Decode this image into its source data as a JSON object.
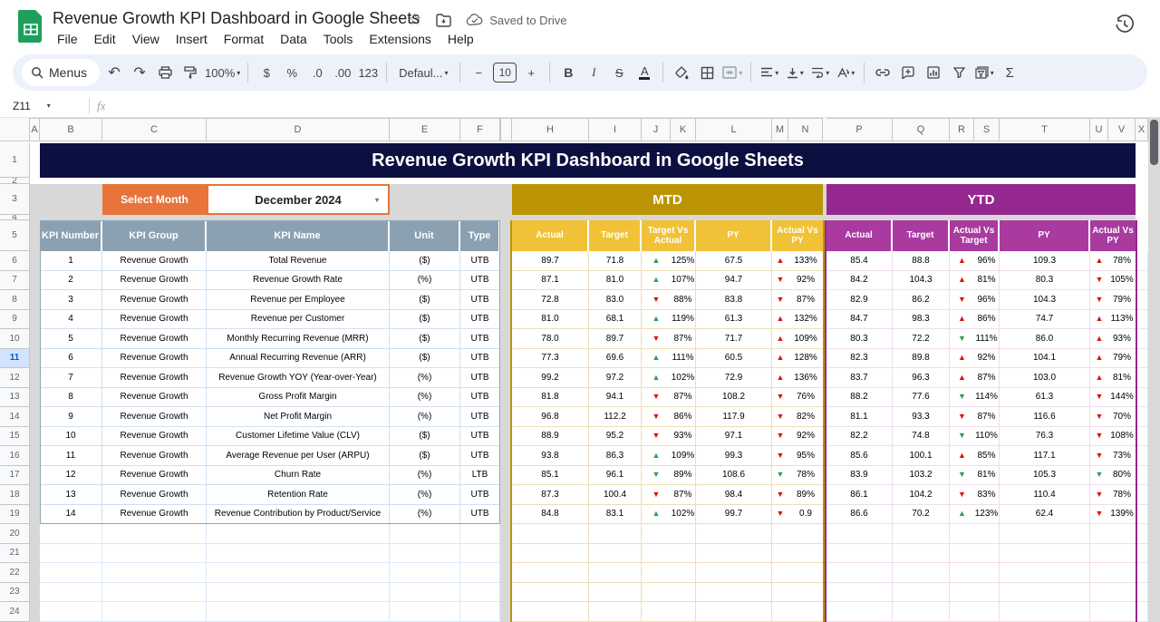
{
  "app": {
    "doc_title": "Revenue Growth KPI Dashboard in Google Sheets",
    "saved_status": "Saved to Drive",
    "menu_items": [
      "File",
      "Edit",
      "View",
      "Insert",
      "Format",
      "Data",
      "Tools",
      "Extensions",
      "Help"
    ]
  },
  "toolbar": {
    "search_label": "Menus",
    "zoom": "100%",
    "currency": "$",
    "percent": "%",
    "decimal_decrease": ".0",
    "decimal_increase": ".00",
    "number_format": "123",
    "font_name": "Defaul...",
    "minus": "−",
    "font_size": "10",
    "plus": "+",
    "bold": "B",
    "italic": "I",
    "strikethrough": "S",
    "text_color": "A",
    "sum": "Σ"
  },
  "formula_bar": {
    "cell_reference": "Z11",
    "fx_label": "fx",
    "formula_value": ""
  },
  "icons": {
    "star": "☆",
    "caret_down": "▾",
    "undo": "↶",
    "redo": "↷",
    "up_arrow": "▲",
    "down_arrow": "▼"
  },
  "colors": {
    "title_navy": "#0c1040",
    "accent_orange": "#e8743b",
    "mtd_gold_dark": "#bb9406",
    "mtd_gold_light": "#f1c237",
    "ytd_purple_dark": "#95288f",
    "ytd_purple_light": "#a83aa0",
    "kpi_header_slate": "#8ba1b1",
    "positive_green": "#2f9e4f",
    "negative_red": "#e01111",
    "dashboard_gray": "#d8d8d8"
  },
  "sheet": {
    "column_letters": [
      "A",
      "B",
      "C",
      "D",
      "E",
      "F",
      "H",
      "I",
      "J",
      "K",
      "L",
      "M",
      "N",
      "P",
      "Q",
      "R",
      "S",
      "T",
      "U",
      "V",
      "X"
    ],
    "row_numbers": [
      1,
      2,
      3,
      4,
      5,
      6,
      7,
      8,
      9,
      10,
      11,
      12,
      13,
      14,
      15,
      16,
      17,
      18,
      19,
      20,
      21,
      22,
      23,
      24
    ],
    "selected_row": 11,
    "title_banner": "Revenue Growth KPI Dashboard in Google Sheets",
    "select_month_label": "Select Month",
    "selected_month": "December 2024",
    "mtd": {
      "title": "MTD",
      "subcolumns": [
        "Actual",
        "Target",
        "Target Vs Actual",
        "PY",
        "Actual Vs PY"
      ]
    },
    "ytd": {
      "title": "YTD",
      "subcolumns": [
        "Actual",
        "Target",
        "Actual Vs Target",
        "PY",
        "Actual Vs PY"
      ]
    },
    "kpi_columns": [
      "KPI Number",
      "KPI Group",
      "KPI Name",
      "Unit",
      "Type"
    ],
    "kpi_rows": [
      {
        "number": "1",
        "group": "Revenue Growth",
        "name": "Total Revenue",
        "unit": "($)",
        "type": "UTB",
        "mtd": {
          "actual": "89.7",
          "target": "71.8",
          "tva": {
            "dir": "up",
            "color": "green",
            "value": "125%"
          },
          "py": "67.5",
          "avp": {
            "dir": "up",
            "color": "red",
            "value": "133%"
          }
        },
        "ytd": {
          "actual": "85.4",
          "target": "88.8",
          "avt": {
            "dir": "up",
            "color": "red",
            "value": "96%"
          },
          "py": "109.3",
          "avp": {
            "dir": "up",
            "color": "red",
            "value": "78%"
          }
        }
      },
      {
        "number": "2",
        "group": "Revenue Growth",
        "name": "Revenue Growth Rate",
        "unit": "(%)",
        "type": "UTB",
        "mtd": {
          "actual": "87.1",
          "target": "81.0",
          "tva": {
            "dir": "up",
            "color": "green",
            "value": "107%"
          },
          "py": "94.7",
          "avp": {
            "dir": "down",
            "color": "red",
            "value": "92%"
          }
        },
        "ytd": {
          "actual": "84.2",
          "target": "104.3",
          "avt": {
            "dir": "up",
            "color": "red",
            "value": "81%"
          },
          "py": "80.3",
          "avp": {
            "dir": "down",
            "color": "red",
            "value": "105%"
          }
        }
      },
      {
        "number": "3",
        "group": "Revenue Growth",
        "name": "Revenue per Employee",
        "unit": "($)",
        "type": "UTB",
        "mtd": {
          "actual": "72.8",
          "target": "83.0",
          "tva": {
            "dir": "down",
            "color": "red",
            "value": "88%"
          },
          "py": "83.8",
          "avp": {
            "dir": "down",
            "color": "red",
            "value": "87%"
          }
        },
        "ytd": {
          "actual": "82.9",
          "target": "86.2",
          "avt": {
            "dir": "down",
            "color": "red",
            "value": "96%"
          },
          "py": "104.3",
          "avp": {
            "dir": "down",
            "color": "red",
            "value": "79%"
          }
        }
      },
      {
        "number": "4",
        "group": "Revenue Growth",
        "name": "Revenue per Customer",
        "unit": "($)",
        "type": "UTB",
        "mtd": {
          "actual": "81.0",
          "target": "68.1",
          "tva": {
            "dir": "up",
            "color": "green",
            "value": "119%"
          },
          "py": "61.3",
          "avp": {
            "dir": "up",
            "color": "red",
            "value": "132%"
          }
        },
        "ytd": {
          "actual": "84.7",
          "target": "98.3",
          "avt": {
            "dir": "up",
            "color": "red",
            "value": "86%"
          },
          "py": "74.7",
          "avp": {
            "dir": "up",
            "color": "red",
            "value": "113%"
          }
        }
      },
      {
        "number": "5",
        "group": "Revenue Growth",
        "name": "Monthly Recurring Revenue (MRR)",
        "unit": "($)",
        "type": "UTB",
        "mtd": {
          "actual": "78.0",
          "target": "89.7",
          "tva": {
            "dir": "down",
            "color": "red",
            "value": "87%"
          },
          "py": "71.7",
          "avp": {
            "dir": "up",
            "color": "red",
            "value": "109%"
          }
        },
        "ytd": {
          "actual": "80.3",
          "target": "72.2",
          "avt": {
            "dir": "down",
            "color": "green",
            "value": "111%"
          },
          "py": "86.0",
          "avp": {
            "dir": "up",
            "color": "red",
            "value": "93%"
          }
        }
      },
      {
        "number": "6",
        "group": "Revenue Growth",
        "name": "Annual Recurring Revenue (ARR)",
        "unit": "($)",
        "type": "UTB",
        "mtd": {
          "actual": "77.3",
          "target": "69.6",
          "tva": {
            "dir": "up",
            "color": "green",
            "value": "111%"
          },
          "py": "60.5",
          "avp": {
            "dir": "up",
            "color": "red",
            "value": "128%"
          }
        },
        "ytd": {
          "actual": "82.3",
          "target": "89.8",
          "avt": {
            "dir": "up",
            "color": "red",
            "value": "92%"
          },
          "py": "104.1",
          "avp": {
            "dir": "up",
            "color": "red",
            "value": "79%"
          }
        }
      },
      {
        "number": "7",
        "group": "Revenue Growth",
        "name": "Revenue Growth YOY (Year-over-Year)",
        "unit": "(%)",
        "type": "UTB",
        "mtd": {
          "actual": "99.2",
          "target": "97.2",
          "tva": {
            "dir": "up",
            "color": "green",
            "value": "102%"
          },
          "py": "72.9",
          "avp": {
            "dir": "up",
            "color": "red",
            "value": "136%"
          }
        },
        "ytd": {
          "actual": "83.7",
          "target": "96.3",
          "avt": {
            "dir": "up",
            "color": "red",
            "value": "87%"
          },
          "py": "103.0",
          "avp": {
            "dir": "up",
            "color": "red",
            "value": "81%"
          }
        }
      },
      {
        "number": "8",
        "group": "Revenue Growth",
        "name": "Gross Profit Margin",
        "unit": "(%)",
        "type": "UTB",
        "mtd": {
          "actual": "81.8",
          "target": "94.1",
          "tva": {
            "dir": "down",
            "color": "red",
            "value": "87%"
          },
          "py": "108.2",
          "avp": {
            "dir": "down",
            "color": "red",
            "value": "76%"
          }
        },
        "ytd": {
          "actual": "88.2",
          "target": "77.6",
          "avt": {
            "dir": "down",
            "color": "green",
            "value": "114%"
          },
          "py": "61.3",
          "avp": {
            "dir": "down",
            "color": "red",
            "value": "144%"
          }
        }
      },
      {
        "number": "9",
        "group": "Revenue Growth",
        "name": "Net Profit Margin",
        "unit": "(%)",
        "type": "UTB",
        "mtd": {
          "actual": "96.8",
          "target": "112.2",
          "tva": {
            "dir": "down",
            "color": "red",
            "value": "86%"
          },
          "py": "117.9",
          "avp": {
            "dir": "down",
            "color": "red",
            "value": "82%"
          }
        },
        "ytd": {
          "actual": "81.1",
          "target": "93.3",
          "avt": {
            "dir": "down",
            "color": "red",
            "value": "87%"
          },
          "py": "116.6",
          "avp": {
            "dir": "down",
            "color": "red",
            "value": "70%"
          }
        }
      },
      {
        "number": "10",
        "group": "Revenue Growth",
        "name": "Customer Lifetime Value (CLV)",
        "unit": "($)",
        "type": "UTB",
        "mtd": {
          "actual": "88.9",
          "target": "95.2",
          "tva": {
            "dir": "down",
            "color": "red",
            "value": "93%"
          },
          "py": "97.1",
          "avp": {
            "dir": "down",
            "color": "red",
            "value": "92%"
          }
        },
        "ytd": {
          "actual": "82.2",
          "target": "74.8",
          "avt": {
            "dir": "down",
            "color": "green",
            "value": "110%"
          },
          "py": "76.3",
          "avp": {
            "dir": "down",
            "color": "red",
            "value": "108%"
          }
        }
      },
      {
        "number": "11",
        "group": "Revenue Growth",
        "name": "Average Revenue per User (ARPU)",
        "unit": "($)",
        "type": "UTB",
        "mtd": {
          "actual": "93.8",
          "target": "86.3",
          "tva": {
            "dir": "up",
            "color": "green",
            "value": "109%"
          },
          "py": "99.3",
          "avp": {
            "dir": "down",
            "color": "red",
            "value": "95%"
          }
        },
        "ytd": {
          "actual": "85.6",
          "target": "100.1",
          "avt": {
            "dir": "up",
            "color": "red",
            "value": "85%"
          },
          "py": "117.1",
          "avp": {
            "dir": "down",
            "color": "red",
            "value": "73%"
          }
        }
      },
      {
        "number": "12",
        "group": "Revenue Growth",
        "name": "Churn Rate",
        "unit": "(%)",
        "type": "LTB",
        "mtd": {
          "actual": "85.1",
          "target": "96.1",
          "tva": {
            "dir": "down",
            "color": "green",
            "value": "89%"
          },
          "py": "108.6",
          "avp": {
            "dir": "down",
            "color": "green",
            "value": "78%"
          }
        },
        "ytd": {
          "actual": "83.9",
          "target": "103.2",
          "avt": {
            "dir": "down",
            "color": "green",
            "value": "81%"
          },
          "py": "105.3",
          "avp": {
            "dir": "down",
            "color": "green",
            "value": "80%"
          }
        }
      },
      {
        "number": "13",
        "group": "Revenue Growth",
        "name": "Retention Rate",
        "unit": "(%)",
        "type": "UTB",
        "mtd": {
          "actual": "87.3",
          "target": "100.4",
          "tva": {
            "dir": "down",
            "color": "red",
            "value": "87%"
          },
          "py": "98.4",
          "avp": {
            "dir": "down",
            "color": "red",
            "value": "89%"
          }
        },
        "ytd": {
          "actual": "86.1",
          "target": "104.2",
          "avt": {
            "dir": "down",
            "color": "red",
            "value": "83%"
          },
          "py": "110.4",
          "avp": {
            "dir": "down",
            "color": "red",
            "value": "78%"
          }
        }
      },
      {
        "number": "14",
        "group": "Revenue Growth",
        "name": "Revenue Contribution by Product/Service",
        "unit": "(%)",
        "type": "UTB",
        "mtd": {
          "actual": "84.8",
          "target": "83.1",
          "tva": {
            "dir": "up",
            "color": "green",
            "value": "102%"
          },
          "py": "99.7",
          "avp": {
            "dir": "down",
            "color": "red",
            "value": "0.9"
          }
        },
        "ytd": {
          "actual": "86.6",
          "target": "70.2",
          "avt": {
            "dir": "up",
            "color": "green",
            "value": "123%"
          },
          "py": "62.4",
          "avp": {
            "dir": "down",
            "color": "red",
            "value": "139%"
          }
        }
      }
    ]
  }
}
